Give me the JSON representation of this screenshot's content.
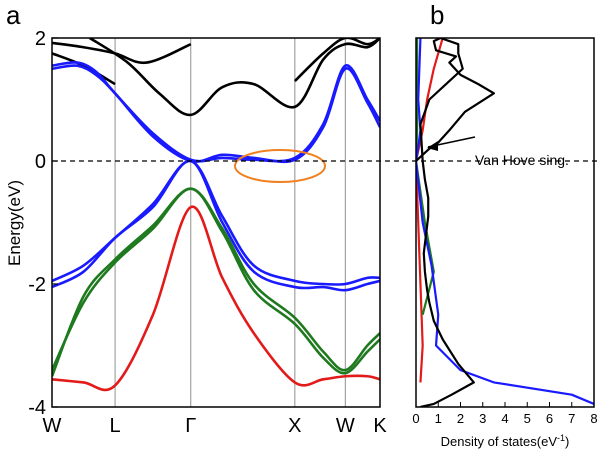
{
  "panels": {
    "a_label": "a",
    "b_label": "b"
  },
  "colors": {
    "black": "#000000",
    "blue": "#1a1aff",
    "green": "#1f7a1f",
    "red": "#e31a1a",
    "ellipse": "#f08020",
    "gridline": "#909090"
  },
  "annotation": {
    "van_hove": "Van Hove sing."
  },
  "chart_data": [
    {
      "type": "line",
      "panel": "a",
      "ylabel": "Energy(eV)",
      "ylim": [
        -4,
        2
      ],
      "yticks": [
        {
          "value": 2,
          "label": "2"
        },
        {
          "value": 0,
          "label": "0"
        },
        {
          "value": -2,
          "label": "-2"
        },
        {
          "value": -4,
          "label": "-4"
        }
      ],
      "xticks": [
        "W",
        "L",
        "Γ",
        "X",
        "W",
        "K"
      ],
      "k_positions": [
        0,
        1,
        2.2,
        3.85,
        4.65,
        5.2
      ],
      "fermi_level": 0,
      "series": [
        {
          "color": "black",
          "x": [
            0,
            0.5,
            1,
            1.5,
            2.2
          ],
          "y": [
            1.92,
            1.85,
            1.75,
            1.6,
            1.9
          ]
        },
        {
          "color": "black",
          "x": [
            0,
            0.5,
            1
          ],
          "y": [
            1.75,
            1.55,
            1.25
          ]
        },
        {
          "color": "black",
          "x": [
            0.6,
            1.2,
            1.7,
            2.2,
            2.7,
            3.2,
            3.85,
            4.3,
            4.65,
            5.0,
            5.2
          ],
          "y": [
            2.0,
            1.6,
            1.1,
            0.75,
            1.2,
            1.25,
            0.88,
            1.65,
            1.9,
            1.85,
            2.0
          ]
        },
        {
          "color": "black",
          "x": [
            3.85,
            4.3,
            4.65,
            5.0,
            5.2
          ],
          "y": [
            1.3,
            1.75,
            2.0,
            1.9,
            2.0
          ]
        },
        {
          "color": "blue",
          "x": [
            0,
            0.4,
            0.7,
            1.0,
            1.6,
            2.2,
            2.7,
            3.2,
            3.85,
            4.3,
            4.65,
            5.0,
            5.2
          ],
          "y": [
            1.55,
            1.6,
            1.45,
            1.1,
            0.45,
            0.02,
            0.05,
            0.02,
            0.05,
            0.6,
            1.55,
            1.0,
            0.65
          ]
        },
        {
          "color": "blue",
          "x": [
            0,
            0.4,
            0.7,
            1.0,
            1.6,
            2.2,
            2.7,
            3.2,
            3.85,
            4.3,
            4.65,
            5.0,
            5.2
          ],
          "y": [
            1.5,
            1.55,
            1.4,
            1.1,
            0.4,
            0.0,
            0.1,
            0.05,
            0.02,
            0.55,
            1.5,
            0.95,
            0.55
          ]
        },
        {
          "color": "blue",
          "x": [
            0,
            0.5,
            1.0,
            1.6,
            2.2,
            2.7,
            3.2,
            3.85,
            4.3,
            4.65,
            5.0,
            5.2
          ],
          "y": [
            -1.95,
            -1.7,
            -1.25,
            -0.7,
            0.0,
            -0.9,
            -1.7,
            -1.95,
            -2.0,
            -2.0,
            -1.9,
            -1.9
          ]
        },
        {
          "color": "blue",
          "x": [
            0,
            0.5,
            1.0,
            1.6,
            2.2,
            2.7,
            3.2,
            3.85,
            4.3,
            4.65,
            5.0,
            5.2
          ],
          "y": [
            -2.05,
            -1.8,
            -1.25,
            -0.75,
            0.0,
            -1.0,
            -1.8,
            -2.05,
            -2.05,
            -2.1,
            -2.0,
            -1.95
          ]
        },
        {
          "color": "green",
          "x": [
            0,
            0.5,
            1.0,
            1.6,
            2.2,
            2.7,
            3.2,
            3.85,
            4.3,
            4.65,
            5.0,
            5.2
          ],
          "y": [
            -3.5,
            -2.2,
            -1.6,
            -1.05,
            -0.45,
            -1.1,
            -2.0,
            -2.55,
            -3.1,
            -3.4,
            -3.0,
            -2.8
          ]
        },
        {
          "color": "green",
          "x": [
            0,
            0.5,
            1.0,
            1.6,
            2.2,
            2.7,
            3.2,
            3.85,
            4.3,
            4.65,
            5.0,
            5.2
          ],
          "y": [
            -3.4,
            -2.3,
            -1.65,
            -1.1,
            -0.45,
            -1.15,
            -2.1,
            -2.65,
            -3.2,
            -3.45,
            -3.1,
            -2.9
          ]
        },
        {
          "color": "red",
          "x": [
            0,
            0.5,
            1.0,
            1.6,
            2.2,
            2.7,
            3.2,
            3.85,
            4.3,
            4.65,
            5.0,
            5.2
          ],
          "y": [
            -3.55,
            -3.6,
            -3.65,
            -2.5,
            -0.75,
            -1.9,
            -2.8,
            -3.6,
            -3.55,
            -3.5,
            -3.5,
            -3.55
          ]
        }
      ]
    },
    {
      "type": "line",
      "panel": "b",
      "xlabel": "Density of states(eV",
      "xlabel_sup": "-1",
      "xlabel_end": ")",
      "xlim": [
        0,
        8
      ],
      "xticks": [
        "0",
        "1",
        "2",
        "3",
        "4",
        "5",
        "6",
        "7",
        "8"
      ],
      "ylim": [
        -4,
        2
      ],
      "series": [
        {
          "color": "black",
          "dos": [
            0.0,
            0.3,
            0.6,
            1.0,
            1.5,
            2.2,
            3.5,
            2.8,
            2.0,
            1.5,
            1.8,
            0.9,
            0.8,
            1.1,
            1.9,
            1.9,
            2.1,
            1.5,
            0.6,
            0.2,
            0.3,
            0.4,
            0.55,
            0.55,
            0.45,
            0.35,
            0.4,
            0.5,
            0.6,
            0.8,
            1.2,
            1.9,
            2.6,
            1.6,
            0.8,
            0.2
          ],
          "energy": [
            0.0,
            0.1,
            0.2,
            0.3,
            0.5,
            0.8,
            1.1,
            1.25,
            1.4,
            1.6,
            1.7,
            1.8,
            1.95,
            2.0,
            1.9,
            1.75,
            1.5,
            1.3,
            1.0,
            0.6,
            0.0,
            -0.3,
            -0.6,
            -0.9,
            -1.2,
            -1.5,
            -1.8,
            -2.1,
            -2.3,
            -2.6,
            -2.9,
            -3.3,
            -3.6,
            -3.8,
            -3.95,
            -4.0
          ]
        },
        {
          "color": "blue",
          "dos": [
            0.2,
            0.15,
            0.1,
            0.2,
            0.05,
            0.0,
            0.3,
            0.7,
            1.0,
            0.9,
            2.0,
            3.5,
            7.0,
            8.0
          ],
          "energy": [
            2.0,
            1.5,
            1.0,
            0.5,
            0.1,
            0.0,
            -1.0,
            -1.7,
            -2.5,
            -3.0,
            -3.4,
            -3.6,
            -3.8,
            -3.95
          ]
        },
        {
          "color": "green",
          "dos": [
            0.05,
            0.05,
            0.0,
            0.4,
            0.8,
            0.3
          ],
          "energy": [
            2.0,
            0.5,
            0.0,
            -1.0,
            -1.8,
            -2.5
          ]
        },
        {
          "color": "red",
          "dos": [
            1.2,
            0.8,
            0.5,
            0.3,
            0.0,
            0.2,
            0.3,
            0.2
          ],
          "energy": [
            2.0,
            1.5,
            1.0,
            0.5,
            0.0,
            -2.0,
            -3.0,
            -3.6
          ]
        }
      ]
    }
  ]
}
